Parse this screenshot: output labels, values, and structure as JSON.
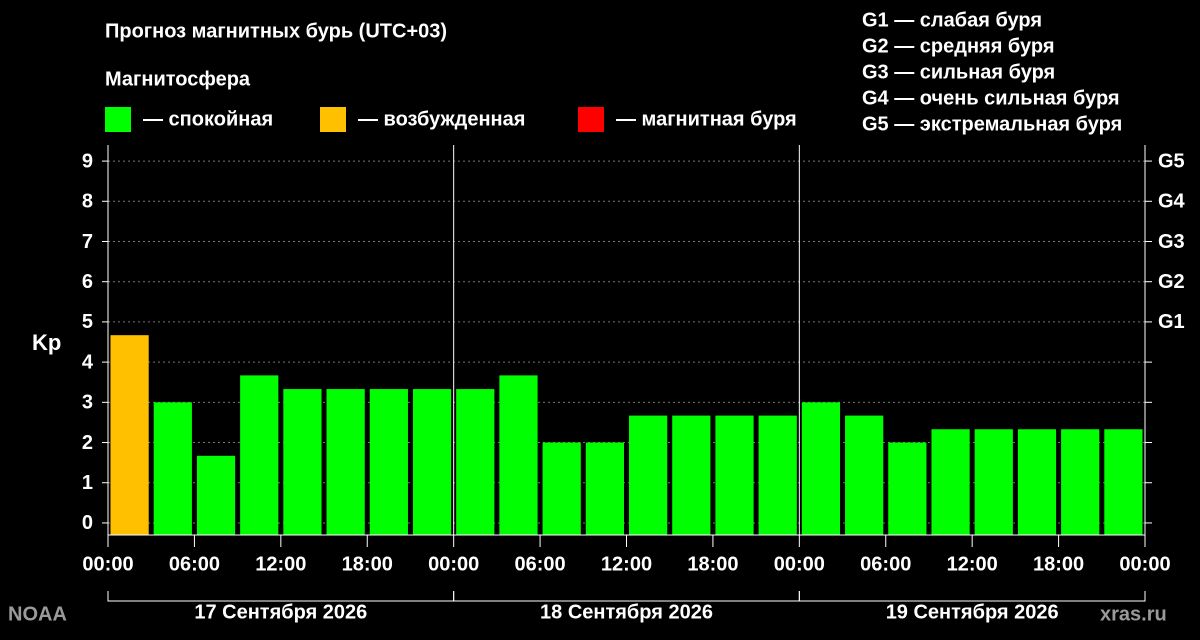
{
  "chart_data": {
    "type": "bar",
    "title": "Прогноз магнитных бурь (UTC+03)",
    "legend": {
      "title": "Магнитосфера",
      "items": [
        {
          "label": "— спокойная",
          "color": "#00ff00"
        },
        {
          "label": "— возбужденная",
          "color": "#ffc000"
        },
        {
          "label": "— магнитная буря",
          "color": "#ff0000"
        }
      ]
    },
    "scale_legend": [
      "G1 — слабая буря",
      "G2 — средняя буря",
      "G3 — сильная буря",
      "G4 — очень сильная буря",
      "G5 — экстремальная буря"
    ],
    "y_label": "Kp",
    "x": [
      0,
      3,
      6,
      9,
      12,
      15,
      18,
      21,
      24,
      27,
      30,
      33,
      36,
      39,
      42,
      45,
      48,
      51,
      54,
      57,
      60,
      63,
      66,
      69
    ],
    "series": [
      {
        "name": "Kp",
        "values": [
          4.67,
          3,
          1.67,
          3.67,
          3.33,
          3.33,
          3.33,
          3.33,
          3.33,
          3.67,
          2,
          2,
          2.67,
          2.67,
          2.67,
          2.67,
          3,
          2.67,
          2,
          2.33,
          2.33,
          2.33,
          2.33,
          2.33
        ],
        "colors": [
          "#ffc000",
          "#00ff00",
          "#00ff00",
          "#00ff00",
          "#00ff00",
          "#00ff00",
          "#00ff00",
          "#00ff00",
          "#00ff00",
          "#00ff00",
          "#00ff00",
          "#00ff00",
          "#00ff00",
          "#00ff00",
          "#00ff00",
          "#00ff00",
          "#00ff00",
          "#00ff00",
          "#00ff00",
          "#00ff00",
          "#00ff00",
          "#00ff00",
          "#00ff00",
          "#00ff00"
        ]
      }
    ],
    "xlim": [
      0,
      72
    ],
    "xticks": [
      {
        "value": 0,
        "label": "00:00"
      },
      {
        "value": 6,
        "label": "06:00"
      },
      {
        "value": 12,
        "label": "12:00"
      },
      {
        "value": 18,
        "label": "18:00"
      },
      {
        "value": 24,
        "label": "00:00"
      },
      {
        "value": 30,
        "label": "06:00"
      },
      {
        "value": 36,
        "label": "12:00"
      },
      {
        "value": 42,
        "label": "18:00"
      },
      {
        "value": 48,
        "label": "00:00"
      },
      {
        "value": 54,
        "label": "06:00"
      },
      {
        "value": 60,
        "label": "12:00"
      },
      {
        "value": 66,
        "label": "18:00"
      },
      {
        "value": 72,
        "label": "00:00"
      }
    ],
    "periods": [
      {
        "label": "17 Сентября 2026",
        "from": 0,
        "to": 24
      },
      {
        "label": "18 Сентября 2026",
        "from": 24,
        "to": 48
      },
      {
        "label": "19 Сентября 2026",
        "from": 48,
        "to": 72
      }
    ],
    "ylim": [
      -0.3,
      9.4
    ],
    "yticks": [
      0,
      1,
      2,
      3,
      4,
      5,
      6,
      7,
      8,
      9
    ],
    "y2lim": [
      -0.3,
      9.4
    ],
    "y2ticks": [
      {
        "value": 5,
        "label": "G1"
      },
      {
        "value": 6,
        "label": "G2"
      },
      {
        "value": 7,
        "label": "G3"
      },
      {
        "value": 8,
        "label": "G4"
      },
      {
        "value": 9,
        "label": "G5"
      }
    ],
    "grid": true,
    "source": "NOAA",
    "credit": "xras.ru"
  }
}
